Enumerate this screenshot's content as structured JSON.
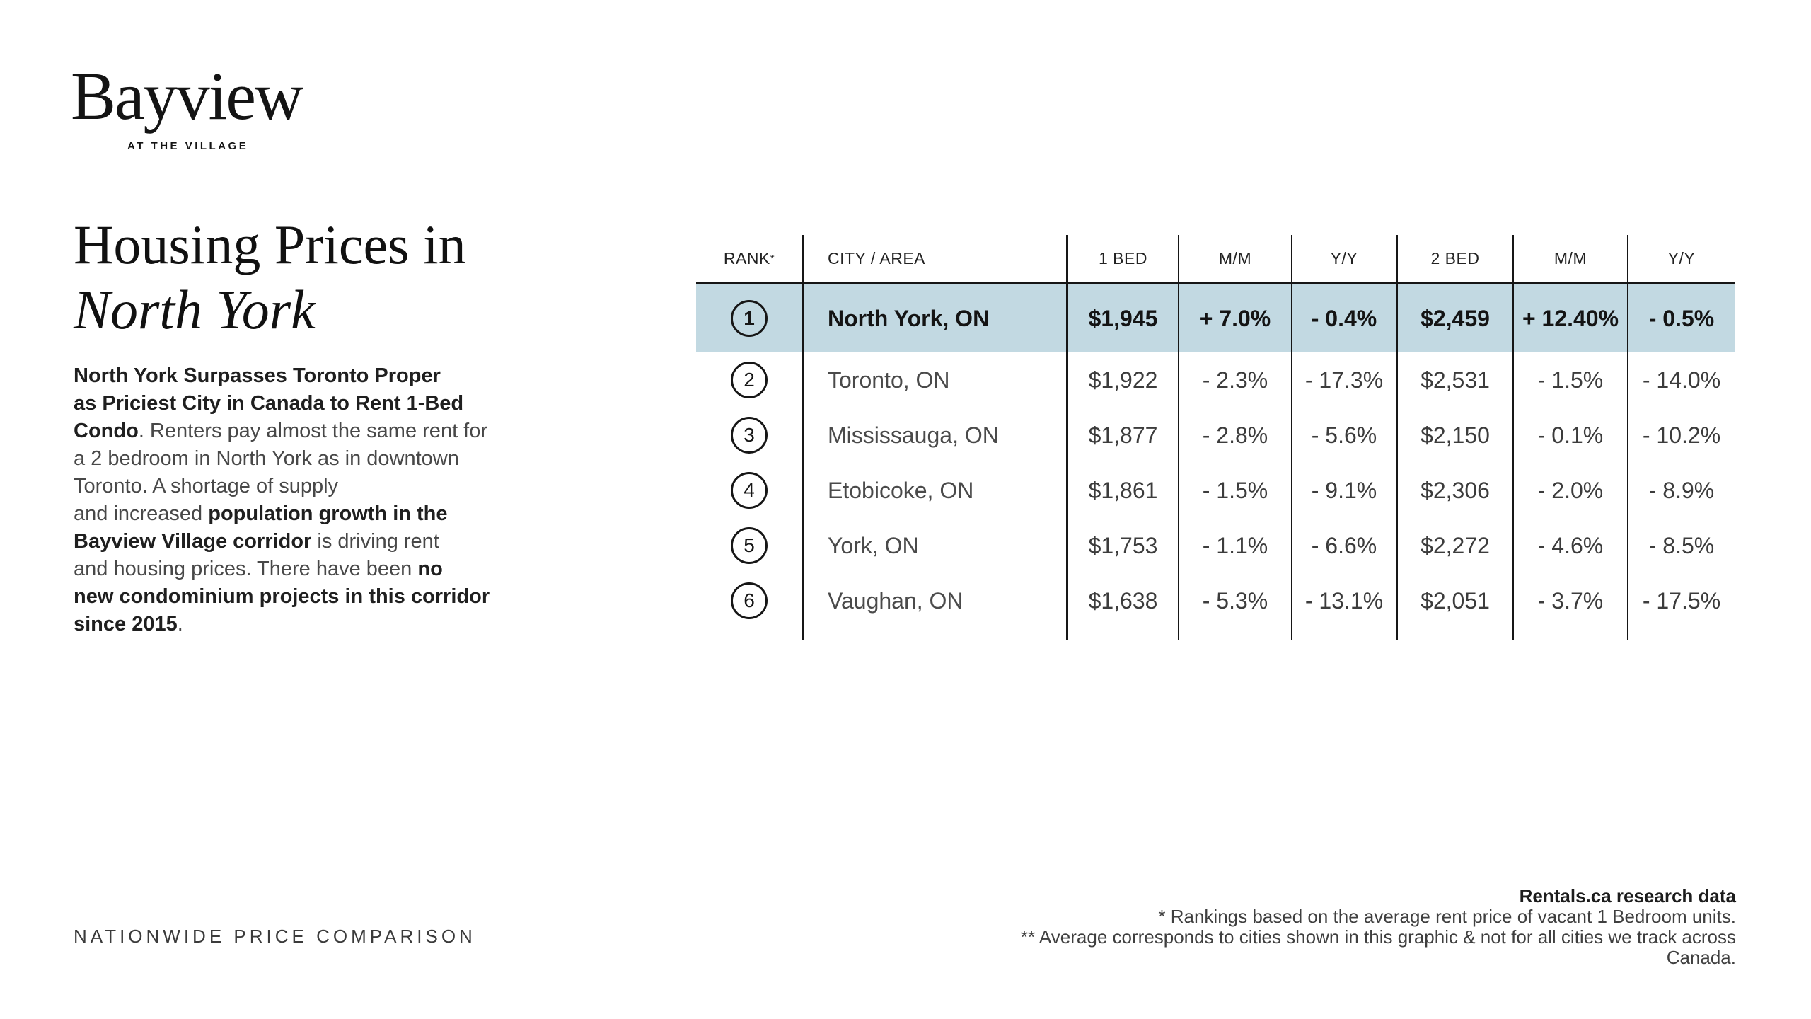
{
  "logo": {
    "name": "Bayview",
    "tagline": "AT THE VILLAGE"
  },
  "title": {
    "line1": "Housing Prices in",
    "line2": "North York"
  },
  "intro": {
    "lines": [
      [
        {
          "t": "North York Surpasses Toronto Proper",
          "b": 1
        }
      ],
      [
        {
          "t": "as Priciest City in Canada to Rent 1-Bed",
          "b": 1
        }
      ],
      [
        {
          "t": "Condo",
          "b": 1
        },
        {
          "t": ". Renters pay almost the same rent for",
          "b": 0
        }
      ],
      [
        {
          "t": "a 2 bedroom in North York as in downtown",
          "b": 0
        }
      ],
      [
        {
          "t": "Toronto. A shortage of supply",
          "b": 0
        }
      ],
      [
        {
          "t": "and increased ",
          "b": 0
        },
        {
          "t": "population growth in the",
          "b": 1
        }
      ],
      [
        {
          "t": "Bayview Village corridor",
          "b": 1
        },
        {
          "t": " is driving rent",
          "b": 0
        }
      ],
      [
        {
          "t": "and housing prices. There have been ",
          "b": 0
        },
        {
          "t": "no",
          "b": 1
        }
      ],
      [
        {
          "t": "new condominium projects in this corridor",
          "b": 1
        }
      ],
      [
        {
          "t": "since 2015",
          "b": 1
        },
        {
          "t": ".",
          "b": 0
        }
      ]
    ]
  },
  "table": {
    "headers": {
      "rank": "RANK",
      "rank_note": "*",
      "city": "CITY / AREA",
      "bed1": "1 BED",
      "mm1": "M/M",
      "yy1": "Y/Y",
      "bed2": "2 BED",
      "mm2": "M/M",
      "yy2": "Y/Y"
    },
    "rows": [
      {
        "rank": "1",
        "city": "North York, ON",
        "bed1": "$1,945",
        "mm1": "+ 7.0%",
        "yy1": "- 0.4%",
        "bed2": "$2,459",
        "mm2": "+ 12.40%",
        "yy2": "- 0.5%",
        "highlight": true
      },
      {
        "rank": "2",
        "city": "Toronto, ON",
        "bed1": "$1,922",
        "mm1": "- 2.3%",
        "yy1": "- 17.3%",
        "bed2": "$2,531",
        "mm2": "- 1.5%",
        "yy2": "- 14.0%",
        "highlight": false
      },
      {
        "rank": "3",
        "city": "Mississauga, ON",
        "bed1": "$1,877",
        "mm1": "- 2.8%",
        "yy1": "- 5.6%",
        "bed2": "$2,150",
        "mm2": "- 0.1%",
        "yy2": "- 10.2%",
        "highlight": false
      },
      {
        "rank": "4",
        "city": "Etobicoke, ON",
        "bed1": "$1,861",
        "mm1": "- 1.5%",
        "yy1": "- 9.1%",
        "bed2": "$2,306",
        "mm2": "- 2.0%",
        "yy2": "- 8.9%",
        "highlight": false
      },
      {
        "rank": "5",
        "city": "York, ON",
        "bed1": "$1,753",
        "mm1": "- 1.1%",
        "yy1": "- 6.6%",
        "bed2": "$2,272",
        "mm2": "- 4.6%",
        "yy2": "- 8.5%",
        "highlight": false
      },
      {
        "rank": "6",
        "city": "Vaughan, ON",
        "bed1": "$1,638",
        "mm1": "- 5.3%",
        "yy1": "- 13.1%",
        "bed2": "$2,051",
        "mm2": "- 3.7%",
        "yy2": "- 17.5%",
        "highlight": false
      }
    ]
  },
  "footer": {
    "left_label": "NATIONWIDE PRICE COMPARISON",
    "source": "Rentals.ca research data",
    "notes": [
      "* Rankings based on the average rent price of vacant 1 Bedroom units.",
      "** Average corresponds to cities shown in this graphic & not for all cities we track across",
      "Canada."
    ]
  },
  "colors": {
    "highlight_row": "#c2d9e2",
    "line": "#161616",
    "text": "#1a1a1a"
  }
}
